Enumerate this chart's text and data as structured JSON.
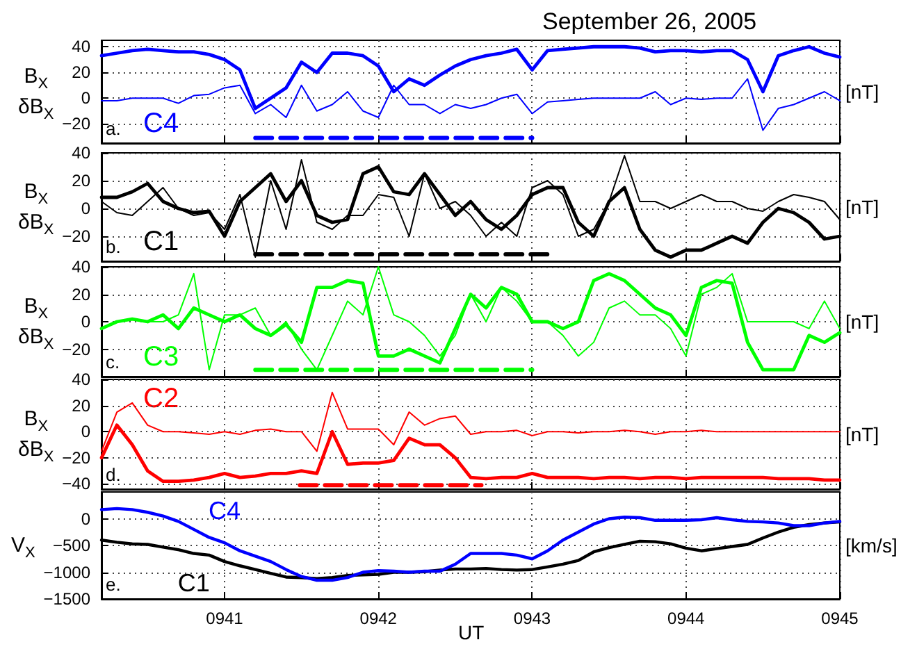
{
  "chart_data": [
    {
      "type": "line",
      "title": "September 26, 2005",
      "ylabel": "B$_{X}$\nδB$_{X}$",
      "y2label": "[nT]",
      "annotations": [
        "a.",
        "C4"
      ],
      "tick_labels": "y",
      "grid": true,
      "x": [
        940.2,
        940.3,
        940.4,
        940.5,
        940.6,
        940.7,
        940.8,
        940.9,
        941,
        941.1,
        941.2,
        941.3,
        941.4,
        941.5,
        941.6,
        941.7,
        941.8,
        941.9,
        942,
        942.1,
        942.2,
        942.3,
        942.4,
        942.5,
        942.6,
        942.7,
        942.8,
        942.9,
        943,
        943.1,
        943.2,
        943.3,
        943.4,
        943.5,
        943.6,
        943.7,
        943.8,
        943.9,
        944,
        944.1,
        944.2,
        944.3,
        944.4,
        944.5,
        944.6,
        944.7,
        944.8,
        944.9,
        945
      ],
      "xlim": [
        940.2,
        945
      ],
      "xticks": [
        941,
        942,
        943,
        944,
        945
      ],
      "ylim": [
        -35,
        45
      ],
      "yticks": [
        -20,
        0,
        20,
        40
      ],
      "series": [
        {
          "color": "#0000ff",
          "values": [
            33,
            35,
            37,
            38,
            37,
            36,
            36,
            34,
            30,
            22,
            -8,
            0,
            8,
            28,
            20,
            35,
            35,
            33,
            25,
            5,
            15,
            10,
            18,
            25,
            30,
            33,
            35,
            38,
            22,
            37,
            38,
            39,
            40,
            40,
            40,
            39,
            36,
            37,
            37,
            36,
            37,
            37,
            30,
            5,
            33,
            37,
            40,
            35,
            32
          ]
        },
        {
          "color": "#0000ff",
          "values": [
            -2,
            -2,
            0,
            0,
            0,
            -4,
            2,
            3,
            8,
            10,
            -12,
            -5,
            -15,
            10,
            -10,
            -5,
            5,
            -10,
            -15,
            10,
            -5,
            -5,
            -12,
            -5,
            -8,
            -5,
            0,
            3,
            -12,
            -3,
            -2,
            -1,
            0,
            0,
            0,
            0,
            5,
            -5,
            0,
            -1,
            0,
            0,
            15,
            -25,
            -8,
            -5,
            0,
            5,
            -2
          ]
        },
        {
          "type": "line",
          "line_style": "dashed",
          "color": "#0000ff",
          "x": [
            941.2,
            943
          ],
          "values": [
            -31,
            -31
          ]
        }
      ]
    },
    {
      "type": "line",
      "ylabel": "B$_{X}$\nδB$_{X}$",
      "y2label": "[nT]",
      "annotations": [
        "b.",
        "C1"
      ],
      "tick_labels": "y",
      "grid": true,
      "x": [
        940.2,
        940.3,
        940.4,
        940.5,
        940.6,
        940.7,
        940.8,
        940.9,
        941,
        941.1,
        941.2,
        941.3,
        941.4,
        941.5,
        941.6,
        941.7,
        941.8,
        941.9,
        942,
        942.1,
        942.2,
        942.3,
        942.4,
        942.5,
        942.6,
        942.7,
        942.8,
        942.9,
        943,
        943.1,
        943.2,
        943.3,
        943.4,
        943.5,
        943.6,
        943.7,
        943.8,
        943.9,
        944,
        944.1,
        944.2,
        944.3,
        944.4,
        944.5,
        944.6,
        944.7,
        944.8,
        944.9,
        945
      ],
      "xlim": [
        940.2,
        945
      ],
      "xticks": [
        941,
        942,
        943,
        944,
        945
      ],
      "ylim": [
        -38,
        40
      ],
      "yticks": [
        -20,
        0,
        20,
        40
      ],
      "series": [
        {
          "color": "#000000",
          "values": [
            8,
            8,
            12,
            18,
            5,
            0,
            -3,
            -2,
            -20,
            5,
            15,
            25,
            5,
            20,
            -5,
            -10,
            -8,
            25,
            30,
            12,
            10,
            25,
            10,
            -5,
            5,
            -8,
            -15,
            -5,
            10,
            15,
            15,
            -10,
            -20,
            5,
            15,
            -15,
            -30,
            -35,
            -30,
            -30,
            -25,
            -20,
            -25,
            -10,
            0,
            -3,
            -10,
            -22,
            -20
          ]
        },
        {
          "color": "#000000",
          "values": [
            5,
            -3,
            -5,
            5,
            15,
            0,
            -5,
            -3,
            -15,
            10,
            -35,
            20,
            -15,
            35,
            -10,
            -15,
            -5,
            -5,
            10,
            8,
            -20,
            25,
            0,
            5,
            -5,
            -20,
            -10,
            -20,
            15,
            20,
            10,
            -20,
            -15,
            5,
            38,
            5,
            5,
            0,
            5,
            10,
            5,
            5,
            0,
            -2,
            5,
            10,
            8,
            5,
            -8
          ]
        },
        {
          "type": "line",
          "line_style": "dashed",
          "color": "#000000",
          "x": [
            941.2,
            943.14
          ],
          "values": [
            -33,
            -33
          ]
        }
      ]
    },
    {
      "type": "line",
      "ylabel": "B$_{X}$\nδB$_{X}$",
      "y2label": "[nT]",
      "annotations": [
        "c.",
        "C3"
      ],
      "tick_labels": "y",
      "grid": true,
      "x": [
        940.2,
        940.3,
        940.4,
        940.5,
        940.6,
        940.7,
        940.8,
        940.9,
        941,
        941.1,
        941.2,
        941.3,
        941.4,
        941.5,
        941.6,
        941.7,
        941.8,
        941.9,
        942,
        942.1,
        942.2,
        942.3,
        942.4,
        942.5,
        942.6,
        942.7,
        942.8,
        942.9,
        943,
        943.1,
        943.2,
        943.3,
        943.4,
        943.5,
        943.6,
        943.7,
        943.8,
        943.9,
        944,
        944.1,
        944.2,
        944.3,
        944.4,
        944.5,
        944.6,
        944.7,
        944.8,
        944.9,
        945
      ],
      "xlim": [
        940.2,
        945
      ],
      "xticks": [
        941,
        942,
        943,
        944,
        945
      ],
      "ylim": [
        -40,
        40
      ],
      "yticks": [
        -20,
        0,
        20,
        40
      ],
      "series": [
        {
          "color": "#00ff00",
          "values": [
            -5,
            0,
            2,
            0,
            5,
            -5,
            10,
            5,
            0,
            5,
            -5,
            -10,
            -2,
            -15,
            25,
            25,
            30,
            28,
            -25,
            -25,
            -20,
            -25,
            -30,
            -5,
            20,
            10,
            25,
            20,
            0,
            0,
            -5,
            0,
            30,
            35,
            30,
            20,
            10,
            5,
            -10,
            25,
            30,
            28,
            -15,
            -35,
            -35,
            -35,
            -10,
            -15,
            -8
          ]
        },
        {
          "color": "#00ff00",
          "values": [
            -5,
            0,
            2,
            0,
            0,
            5,
            35,
            -35,
            5,
            5,
            10,
            -10,
            0,
            -20,
            -35,
            -10,
            15,
            5,
            40,
            5,
            0,
            -10,
            -25,
            -10,
            20,
            0,
            25,
            15,
            0,
            0,
            -10,
            -25,
            -15,
            10,
            15,
            5,
            5,
            -5,
            -25,
            20,
            25,
            35,
            0,
            0,
            0,
            0,
            -5,
            15,
            -5
          ]
        },
        {
          "type": "line",
          "line_style": "dashed",
          "color": "#00ff00",
          "x": [
            941.2,
            943
          ],
          "values": [
            -35,
            -35
          ]
        }
      ]
    },
    {
      "type": "line",
      "ylabel": "B$_{X}$\nδB$_{X}$",
      "y2label": "[nT]",
      "annotations": [
        "d.",
        "C2"
      ],
      "tick_labels": "y",
      "grid": true,
      "x": [
        940.2,
        940.3,
        940.4,
        940.5,
        940.6,
        940.7,
        940.8,
        940.9,
        941,
        941.1,
        941.2,
        941.3,
        941.4,
        941.5,
        941.6,
        941.7,
        941.8,
        941.9,
        942,
        942.1,
        942.2,
        942.3,
        942.4,
        942.5,
        942.6,
        942.7,
        942.8,
        942.9,
        943,
        943.1,
        943.2,
        943.3,
        943.4,
        943.5,
        943.6,
        943.7,
        943.8,
        943.9,
        944,
        944.1,
        944.2,
        944.3,
        944.4,
        944.5,
        944.6,
        944.7,
        944.8,
        944.9,
        945
      ],
      "xlim": [
        940.2,
        945
      ],
      "xticks": [
        941,
        942,
        943,
        944,
        945
      ],
      "ylim": [
        -44,
        40
      ],
      "yticks": [
        -40,
        -20,
        0,
        20,
        40
      ],
      "series": [
        {
          "color": "#ff0000",
          "values": [
            -20,
            5,
            -10,
            -30,
            -38,
            -38,
            -37,
            -35,
            -32,
            -35,
            -34,
            -32,
            -32,
            -30,
            -32,
            0,
            -25,
            -24,
            -24,
            -22,
            -5,
            -10,
            -10,
            -20,
            -35,
            -36,
            -35,
            -35,
            -32,
            -35,
            -35,
            -35,
            -36,
            -35,
            -35,
            -36,
            -35,
            -35,
            -36,
            -35,
            -35,
            -35,
            -35,
            -35,
            -36,
            -36,
            -36,
            -37,
            -37
          ]
        },
        {
          "color": "#ff0000",
          "values": [
            -15,
            15,
            22,
            5,
            0,
            0,
            -1,
            -2,
            0,
            -2,
            1,
            2,
            0,
            0,
            -15,
            30,
            2,
            2,
            2,
            -10,
            15,
            5,
            10,
            12,
            -2,
            0,
            0,
            1,
            -3,
            0,
            0,
            -1,
            0,
            0,
            1,
            0,
            -2,
            0,
            0,
            1,
            0,
            0,
            0,
            0,
            0,
            0,
            0,
            0,
            0
          ]
        },
        {
          "type": "line",
          "line_style": "dashed",
          "color": "#ff0000",
          "x": [
            941.49,
            942.67
          ],
          "values": [
            -41,
            -41
          ]
        }
      ]
    },
    {
      "type": "line",
      "ylabel": "V$_{X}$",
      "y2label": "[km/s]",
      "xlabel": "UT",
      "annotations": [
        "e."
      ],
      "grid": true,
      "x": [
        940.2,
        940.3,
        940.4,
        940.5,
        940.6,
        940.7,
        940.8,
        940.9,
        941,
        941.1,
        941.2,
        941.3,
        941.4,
        941.5,
        941.6,
        941.7,
        941.8,
        941.9,
        942,
        942.1,
        942.2,
        942.3,
        942.4,
        942.5,
        942.6,
        942.7,
        942.8,
        942.9,
        943,
        943.1,
        943.2,
        943.3,
        943.4,
        943.5,
        943.6,
        943.7,
        943.8,
        943.9,
        944,
        944.1,
        944.2,
        944.3,
        944.4,
        944.5,
        944.6,
        944.7,
        944.8,
        944.9,
        945
      ],
      "xlim": [
        940.2,
        945
      ],
      "xticks": [
        {
          "value": 941,
          "label": "0941"
        },
        {
          "value": 942,
          "label": "0942"
        },
        {
          "value": 943,
          "label": "0943"
        },
        {
          "value": 944,
          "label": "0944"
        },
        {
          "value": 945,
          "label": "0945"
        }
      ],
      "ylim": [
        -1500,
        500
      ],
      "yticks": [
        -1500,
        -1000,
        -500,
        0
      ],
      "series": [
        {
          "name": "C4",
          "color": "#0000ff",
          "values": [
            170,
            190,
            170,
            120,
            50,
            -50,
            -200,
            -350,
            -450,
            -600,
            -700,
            -800,
            -950,
            -1080,
            -1150,
            -1150,
            -1100,
            -1000,
            -970,
            -980,
            -1000,
            -980,
            -980,
            -850,
            -650,
            -650,
            -650,
            -680,
            -750,
            -600,
            -400,
            -250,
            -100,
            0,
            30,
            20,
            -30,
            -30,
            -30,
            -20,
            20,
            -20,
            -50,
            -60,
            -80,
            -130,
            -130,
            -80,
            -50
          ]
        },
        {
          "name": "C1",
          "color": "#000000",
          "values": [
            -400,
            -440,
            -470,
            -480,
            -530,
            -580,
            -650,
            -680,
            -800,
            -880,
            -950,
            -1020,
            -1090,
            -1100,
            -1120,
            -1100,
            -1060,
            -1050,
            -1040,
            -1000,
            -1000,
            -990,
            -960,
            -940,
            -940,
            -930,
            -950,
            -960,
            -950,
            -900,
            -850,
            -780,
            -620,
            -540,
            -480,
            -420,
            -430,
            -470,
            -550,
            -600,
            -560,
            -520,
            -480,
            -360,
            -250,
            -160,
            -110,
            -80,
            -60
          ]
        }
      ]
    }
  ]
}
